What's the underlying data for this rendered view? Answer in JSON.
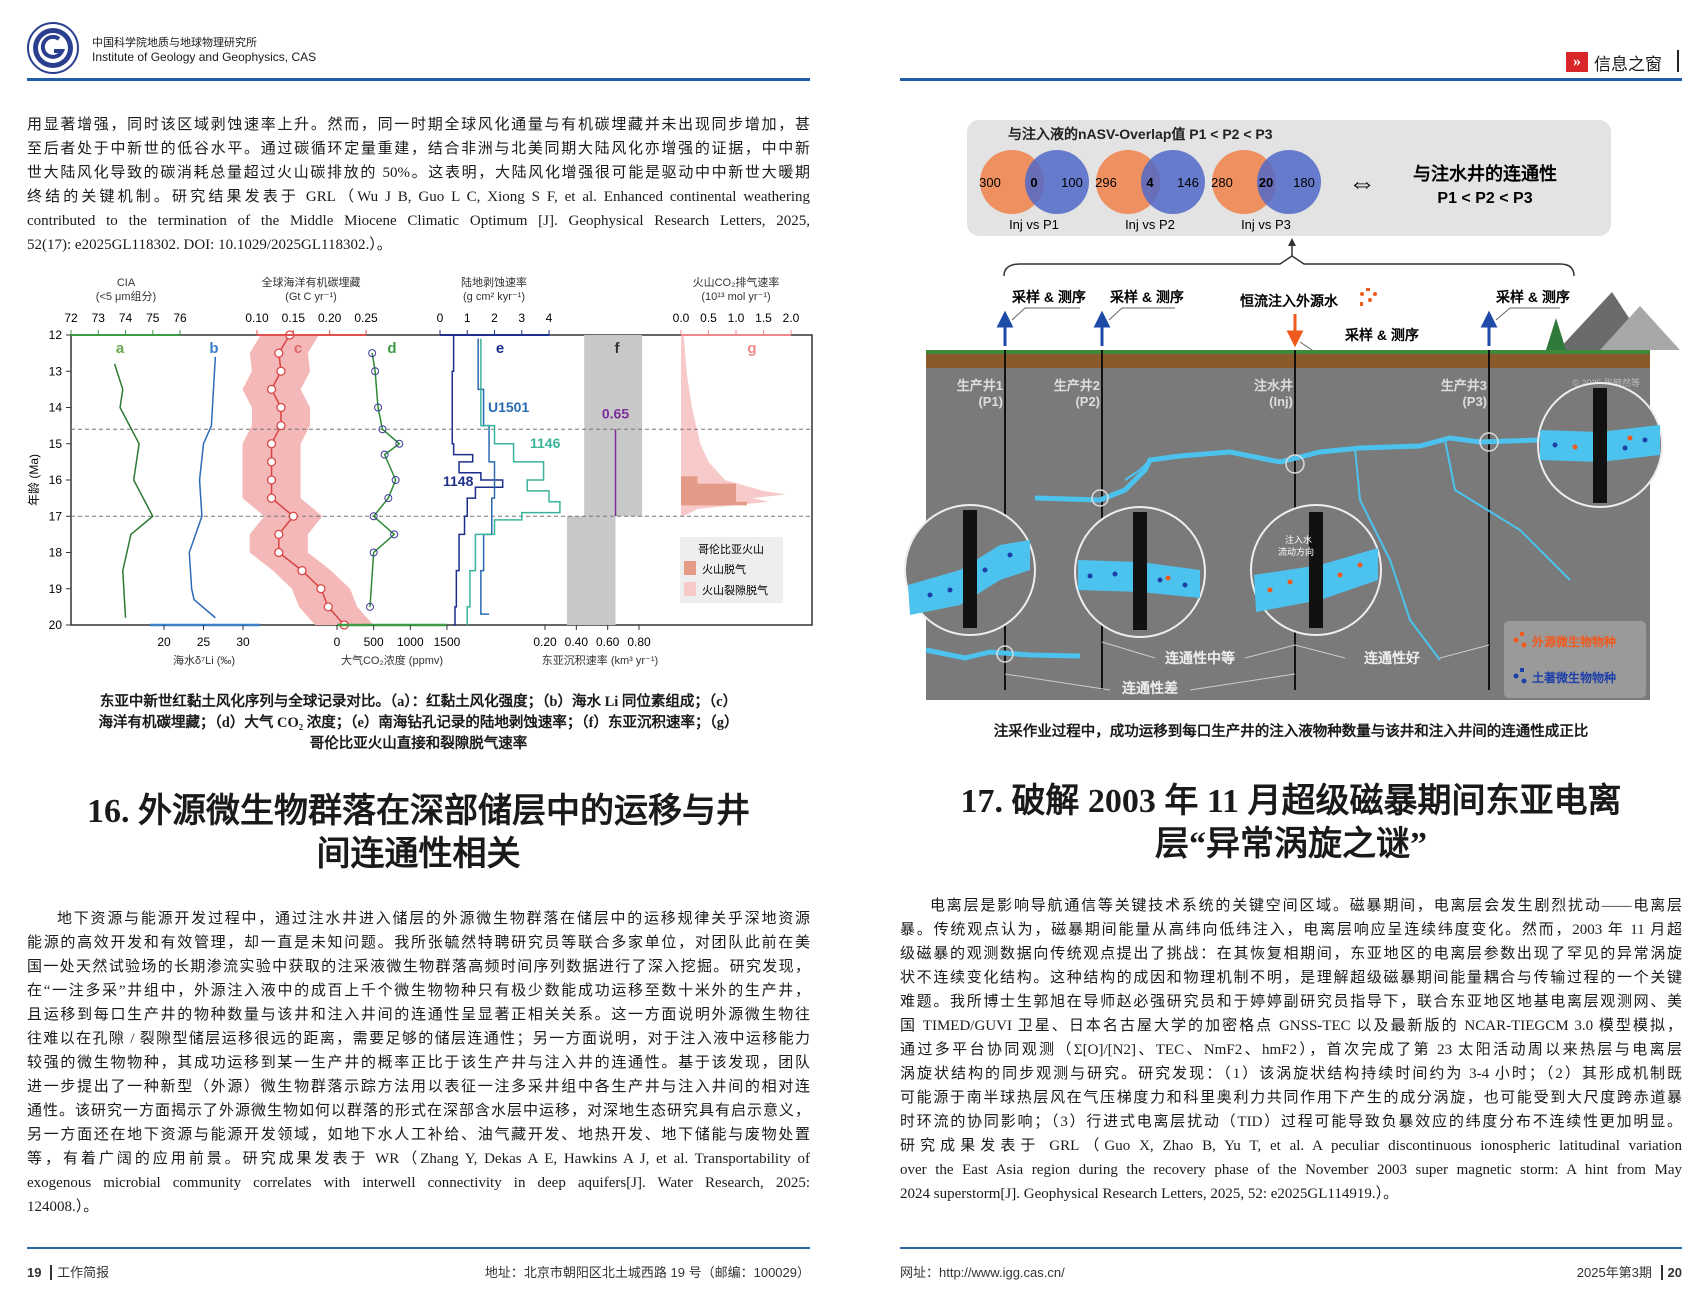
{
  "left_page": {
    "header": {
      "org_cn": "中国科学院地质与地球物理研究所",
      "org_en": "Institute of Geology and Geophysics, CAS"
    },
    "intro_lines": [
      "用显著增强，同时该区域剥蚀速率上升。然而，同一时期全球风化通量与有机碳埋藏并未出现同步增加，甚",
      "至后者处于中新世的低谷水平。通过碳循环定量重建，结合非洲与北美同期大陆风化亦增强的证据，中中新",
      "世大陆风化导致的碳消耗总量超过火山碳排放的 50%。这表明，大陆风化增强很可能是驱动中中新世大暖期",
      "终结的关键机制。研究结果发表于 GRL（Wu J B, Guo L C, Xiong S F, et al. Enhanced continental weathering",
      "contributed to the termination of the Middle Miocene Climatic Optimum [J]. Geophysical Research Letters, 2025,",
      "52(17): e2025GL118302. DOI: 10.1029/2025GL118302.）。"
    ],
    "figure": {
      "y_axis_label": "年龄 (Ma)",
      "y_ticks": [
        12,
        13,
        14,
        15,
        16,
        17,
        18,
        19,
        20
      ],
      "y_range": [
        12,
        20
      ],
      "dashed_lines": [
        14.6,
        17.0
      ],
      "top_axes": [
        {
          "title": "CIA",
          "subtitle": "(<5 μm组分)",
          "ticks": [
            "72",
            "73",
            "74",
            "75",
            "76"
          ],
          "color": "#3f9a46"
        },
        {
          "title": "全球海洋有机碳埋藏",
          "subtitle": "(Gt C yr⁻¹)",
          "ticks": [
            "0.10",
            "0.15",
            "0.20",
            "0.25"
          ],
          "color": "#e0504f"
        },
        {
          "title": "陆地剥蚀速率",
          "subtitle": "(g cm² kyr⁻¹)",
          "ticks": [
            "0",
            "1",
            "2",
            "3",
            "4"
          ],
          "color": "#1c2f8a"
        },
        {
          "title": "火山CO₂排气速率",
          "subtitle": "(10¹³ mol yr⁻¹)",
          "ticks": [
            "0.0",
            "0.5",
            "1.0",
            "1.5",
            "2.0"
          ],
          "color": "#f08a8a"
        }
      ],
      "bottom_axes": [
        {
          "title": "海水δ⁷Li (‰)",
          "ticks": [
            "20",
            "25",
            "30"
          ],
          "color": "#3a7fc8"
        },
        {
          "title": "大气CO₂浓度 (ppmv)",
          "ticks": [
            "0",
            "500",
            "1000",
            "1500"
          ],
          "color": "#3f9a46"
        },
        {
          "title": "东亚沉积速率 (km³ yr⁻¹)",
          "ticks": [
            "0.20",
            "0.40",
            "0.60",
            "0.80"
          ],
          "color": "#555555"
        }
      ],
      "panel_letters": [
        "a",
        "b",
        "c",
        "d",
        "e",
        "f",
        "g"
      ],
      "series_labels": {
        "u1501": "U1501",
        "s1146": "1146",
        "s1148": "1148",
        "f_value": "0.65"
      },
      "series": {
        "a_cia": [
          [
            12.8,
            73.6
          ],
          [
            13.5,
            73.9
          ],
          [
            14.0,
            73.8
          ],
          [
            15.0,
            74.5
          ],
          [
            16.0,
            74.3
          ],
          [
            17.0,
            75.0
          ],
          [
            17.5,
            74.2
          ],
          [
            18.5,
            73.9
          ],
          [
            19.8,
            74.0
          ]
        ],
        "b_li": [
          [
            12.6,
            26.5
          ],
          [
            14.5,
            26.0
          ],
          [
            15.0,
            25.0
          ],
          [
            16.0,
            24.5
          ],
          [
            17.0,
            24.8
          ],
          [
            18.0,
            23.2
          ],
          [
            19.0,
            23.5
          ],
          [
            19.3,
            23.8
          ],
          [
            19.8,
            26.5
          ]
        ],
        "c_orgc": [
          [
            12.0,
            0.145
          ],
          [
            12.5,
            0.13
          ],
          [
            13.0,
            0.133
          ],
          [
            13.5,
            0.12
          ],
          [
            14.0,
            0.133
          ],
          [
            14.5,
            0.133
          ],
          [
            15.0,
            0.12
          ],
          [
            15.5,
            0.12
          ],
          [
            16.0,
            0.12
          ],
          [
            16.5,
            0.12
          ],
          [
            17.0,
            0.15
          ],
          [
            17.5,
            0.13
          ],
          [
            18.0,
            0.13
          ],
          [
            18.5,
            0.162
          ],
          [
            19.0,
            0.188
          ],
          [
            19.5,
            0.198
          ],
          [
            20.0,
            0.22
          ]
        ],
        "d_co2": [
          [
            12.5,
            480
          ],
          [
            13.0,
            520
          ],
          [
            14.0,
            560
          ],
          [
            14.6,
            620
          ],
          [
            15.0,
            850
          ],
          [
            15.3,
            650
          ],
          [
            16.0,
            800
          ],
          [
            16.5,
            700
          ],
          [
            17.0,
            500
          ],
          [
            17.5,
            780
          ],
          [
            18.0,
            500
          ],
          [
            19.5,
            450
          ]
        ],
        "e_1148": [
          [
            12.0,
            0.5
          ],
          [
            13.0,
            0.45
          ],
          [
            14.0,
            0.45
          ],
          [
            15.0,
            0.5
          ],
          [
            15.3,
            1.2
          ],
          [
            15.5,
            0.7
          ],
          [
            15.8,
            1.5
          ],
          [
            16.0,
            2.3
          ],
          [
            16.2,
            1.3
          ],
          [
            16.5,
            1.0
          ],
          [
            17.0,
            0.9
          ],
          [
            17.5,
            0.7
          ],
          [
            18.5,
            0.6
          ],
          [
            19.5,
            0.55
          ],
          [
            20.0,
            0.5
          ]
        ],
        "e_u1501": [
          [
            12.1,
            1.4
          ],
          [
            13.5,
            1.6
          ],
          [
            14.5,
            1.8
          ],
          [
            15.5,
            2.0
          ],
          [
            16.5,
            1.9
          ],
          [
            17.5,
            1.6
          ],
          [
            18.5,
            1.5
          ],
          [
            19.7,
            1.8
          ]
        ],
        "e_1146": [
          [
            12.1,
            1.5
          ],
          [
            13.8,
            1.5
          ],
          [
            14.5,
            2.0
          ],
          [
            15.0,
            2.7
          ],
          [
            15.5,
            3.8
          ],
          [
            16.0,
            3.2
          ],
          [
            16.3,
            4.0
          ],
          [
            16.6,
            4.4
          ],
          [
            16.9,
            3.0
          ],
          [
            17.1,
            2.0
          ],
          [
            17.5,
            1.3
          ],
          [
            18.5,
            1.1
          ],
          [
            19.5,
            1.0
          ],
          [
            20.0,
            1.0
          ]
        ],
        "f_rate_upper": [
          0.45,
          0.82
        ],
        "f_rate_lower": [
          0.34,
          0.65
        ],
        "f_value": 0.65,
        "g_rift": [
          [
            12.0,
            0.05
          ],
          [
            13.0,
            0.1
          ],
          [
            14.0,
            0.2
          ],
          [
            15.0,
            0.35
          ],
          [
            15.5,
            0.5
          ],
          [
            16.0,
            0.8
          ],
          [
            16.3,
            1.5
          ],
          [
            16.4,
            1.9
          ],
          [
            16.5,
            1.3
          ],
          [
            16.6,
            1.6
          ],
          [
            16.8,
            0.3
          ],
          [
            17.0,
            0.05
          ]
        ],
        "g_direct": [
          [
            15.9,
            0.3
          ],
          [
            16.1,
            1.0
          ],
          [
            16.6,
            1.2
          ],
          [
            16.7,
            0.0
          ]
        ]
      },
      "legend": {
        "title": "哥伦比亚火山",
        "items": [
          "火山脱气",
          "火山裂隙脱气"
        ],
        "colors": [
          "#e39a86",
          "#f7c9c9"
        ]
      }
    },
    "figure_caption": [
      "东亚中新世红黏土风化序列与全球记录对比。（a）：红黏土风化强度；（b）海水 Li 同位素组成；（c）",
      "海洋有机碳埋藏；（d）大气 CO₂ 浓度；（e）南海钻孔记录的陆地剥蚀速率；（f）东亚沉积速率；（g）",
      "哥伦比亚火山直接和裂隙脱气速率"
    ],
    "article_title": [
      "16. 外源微生物群落在深部储层中的运移与井",
      "间连通性相关"
    ],
    "body_lines": [
      "地下资源与能源开发过程中，通过注水井进入储层的外源微生物群落在储层中的运移规律关乎深地资源",
      "能源的高效开发和有效管理，却一直是未知问题。我所张毓然特聘研究员等联合多家单位，对团队此前在美",
      "国一处天然试验场的长期渗流实验中获取的注采液微生物群落高频时间序列数据进行了深入挖掘。研究发现，",
      "在“一注多采”井组中，外源注入液中的成百上千个微生物物种只有极少数能成功运移至数十米外的生产井，",
      "且运移到每口生产井的物种数量与该井和注入井间的连通性呈显著正相关关系。这一方面说明外源微生物往",
      "往难以在孔隙 / 裂隙型储层运移很远的距离，需要足够的储层连通性；另一方面说明，对于注入液中运移能力",
      "较强的微生物物种，其成功运移到某一生产井的概率正比于该生产井与注入井的连通性。基于该发现，团队",
      "进一步提出了一种新型（外源）微生物群落示踪方法用以表征一注多采井组中各生产井与注入井间的相对连",
      "通性。该研究一方面揭示了外源微生物如何以群落的形式在深部含水层中运移，对深地生态研究具有启示意义，",
      "另一方面还在地下资源与能源开发领域，如地下水人工补给、油气藏开发、地热开发、地下储能与废物处置",
      "等，有着广阔的应用前景。研究成果发表于 WR（Zhang Y, Dekas A E, Hawkins A J, et al. Transportability of",
      "exogenous microbial community correlates with interwell connectivity in deep aquifers[J]. Water Research, 2025:",
      "124008.）。"
    ],
    "footer": {
      "page_number": "19",
      "section": "工作简报",
      "address": "地址：北京市朝阳区北土城西路 19 号（邮编：100029）"
    }
  },
  "right_page": {
    "header": {
      "section": "信息之窗",
      "icon": "double-chevron-right-icon",
      "accent": "#d8262b"
    },
    "diagram": {
      "venn_title": "与注入液的nASV-Overlap值 P1 < P2 < P3",
      "venns": [
        {
          "left": "300",
          "overlap": "0",
          "right": "100",
          "label": "Inj vs P1"
        },
        {
          "left": "296",
          "overlap": "4",
          "right": "146",
          "label": "Inj vs P2"
        },
        {
          "left": "280",
          "overlap": "20",
          "right": "180",
          "label": "Inj vs P3"
        }
      ],
      "equivalence_symbol": "⇔",
      "connectivity_title": "与注水井的连通性",
      "connectivity_order": "P1 < P2 < P3",
      "sampling_label": "采样 & 测序",
      "injection_label": "恒流注入外源水",
      "wells": [
        {
          "name": "生产井1",
          "code": "(P1)"
        },
        {
          "name": "生产井2",
          "code": "(P2)"
        },
        {
          "name": "注水井",
          "code": "(Inj)"
        },
        {
          "name": "生产井3",
          "code": "(P3)"
        }
      ],
      "copyright": "© 2025 张毓然等",
      "flow_direction_label": [
        "注入水",
        "流动方向"
      ],
      "connectivity_labels": {
        "medium": "连通性中等",
        "good": "连通性好",
        "poor": "连通性差"
      },
      "legend": [
        {
          "label": "外源微生物物种",
          "color": "#f05a1e"
        },
        {
          "label": "土著微生物物种",
          "color": "#1e3fa8"
        }
      ],
      "colors": {
        "venn_left": "#ee9060",
        "venn_right": "#5068c8",
        "fracture": "#4cc3ee",
        "rock": "#7a7a7a",
        "soil": "#8b5a2b"
      }
    },
    "figure_caption": "注采作业过程中，成功运移到每口生产井的注入液物种数量与该井和注入井间的连通性成正比",
    "article_title": [
      "17. 破解 2003 年 11 月超级磁暴期间东亚电离",
      "层“异常涡旋之谜”"
    ],
    "body_lines": [
      "电离层是影响导航通信等关键技术系统的关键空间区域。磁暴期间，电离层会发生剧烈扰动——电离层",
      "暴。传统观点认为，磁暴期间能量从高纬向低纬注入，电离层响应呈连续纬度变化。然而，2003 年 11 月超",
      "级磁暴的观测数据向传统观点提出了挑战：在其恢复相期间，东亚地区的电离层参数出现了罕见的异常涡旋",
      "状不连续变化结构。这种结构的成因和物理机制不明，是理解超级磁暴期间能量耦合与传输过程的一个关键",
      "难题。我所博士生郭旭在导师赵必强研究员和于婷婷副研究员指导下，联合东亚地区地基电离层观测网、美",
      "国 TIMED/GUVI 卫星、日本名古屋大学的加密格点 GNSS-TEC 以及最新版的 NCAR-TIEGCM 3.0 模型模拟，",
      "通过多平台协同观测（Σ[O]/[N2]、TEC、NmF2、hmF2），首次完成了第 23 太阳活动周以来热层与电离层",
      "涡旋状结构的同步观测与研究。研究发现：（1）该涡旋状结构持续时间约为 3-4 小时；（2）其形成机制既",
      "可能源于南半球热层风在气压梯度力和科里奥利力共同作用下产生的成分涡旋，也可能受到大尺度跨赤道暴",
      "时环流的协同影响；（3）行进式电离层扰动（TID）过程可能导致负暴效应的纬度分布不连续性更加明显。",
      "研究成果发表于 GRL（Guo X, Zhao B, Yu T, et al. A peculiar discontinuous ionospheric latitudinal variation",
      "over the East Asia region during the recovery phase of the November 2003 super magnetic storm: A hint from May",
      "2024 superstorm[J]. Geophysical Research Letters, 2025, 52: e2025GL114919.）。"
    ],
    "footer": {
      "website": "网址：http://www.igg.cas.cn/",
      "issue": "2025年第3期",
      "page_number": "20"
    }
  }
}
